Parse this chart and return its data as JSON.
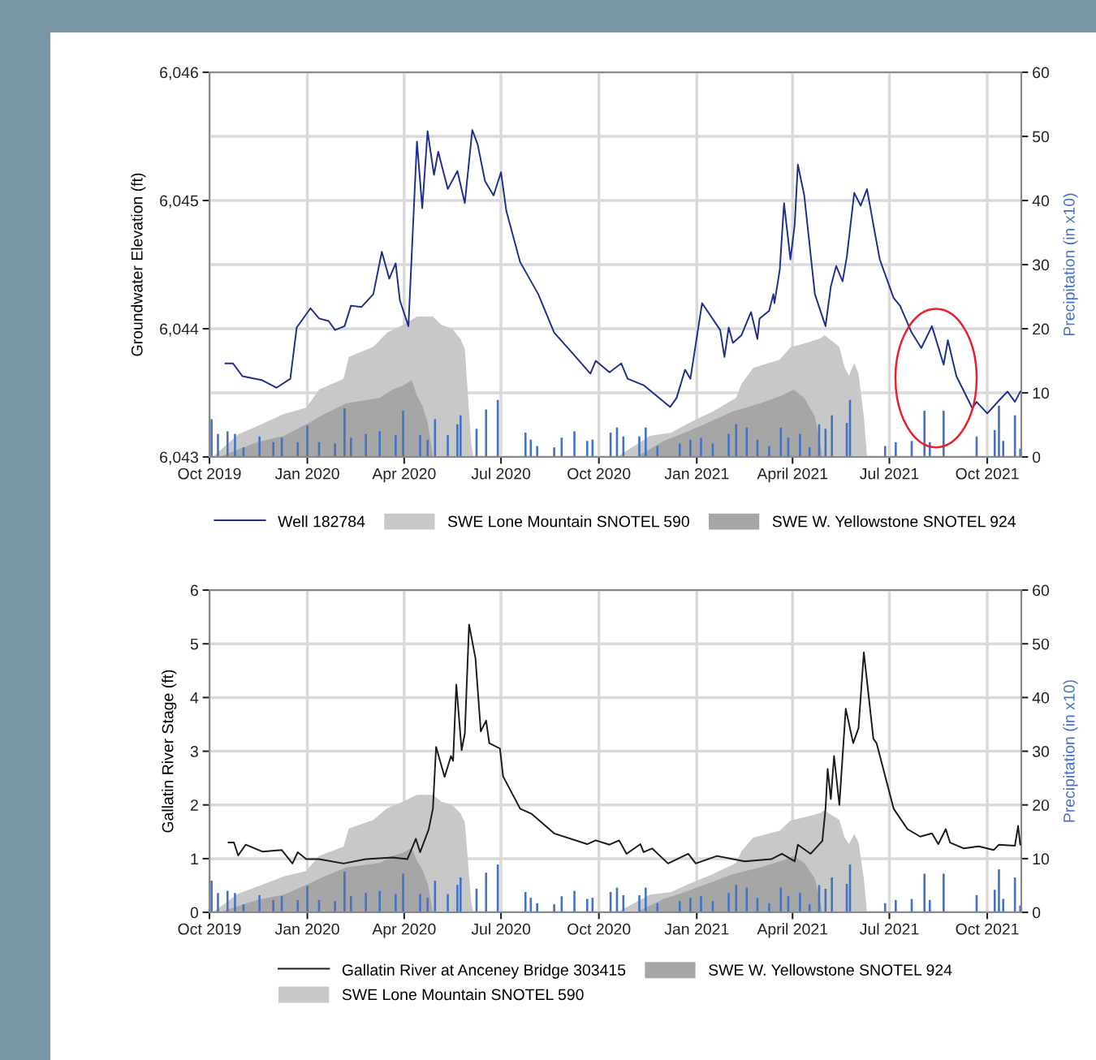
{
  "chart_data": [
    {
      "type": "line",
      "ylabel": "Groundwater Elevation (ft)",
      "y2label": "Precipitation (in x10)",
      "xlim": [
        "2019-10-01",
        "2021-11-02"
      ],
      "xticks": [
        {
          "value": "2019-10-01",
          "label": "Oct 2019"
        },
        {
          "value": "2020-01-01",
          "label": "Jan 2020"
        },
        {
          "value": "2020-04-01",
          "label": "Apr 2020"
        },
        {
          "value": "2020-07-01",
          "label": "Jul 2020"
        },
        {
          "value": "2020-10-01",
          "label": "Oct 2020"
        },
        {
          "value": "2021-01-01",
          "label": "Jan 2021"
        },
        {
          "value": "2021-04-01",
          "label": "April 2021"
        },
        {
          "value": "2021-07-01",
          "label": "Jul 2021"
        },
        {
          "value": "2021-10-01",
          "label": "Oct 2021"
        }
      ],
      "ylim": [
        6043,
        6046
      ],
      "yticks": [
        {
          "value": 6043,
          "label": "6,043"
        },
        {
          "value": 6044,
          "label": "6,044"
        },
        {
          "value": 6045,
          "label": "6,045"
        },
        {
          "value": 6046,
          "label": "6,046"
        }
      ],
      "y2lim": [
        0,
        60
      ],
      "y2ticks": [
        0,
        10,
        20,
        30,
        40,
        50,
        60
      ],
      "grid": true,
      "legend": "bottom",
      "series": [
        {
          "name": "SWE Lone Mountain SNOTEL 590",
          "type": "area",
          "axis": "y2",
          "color": "#c8c8c8",
          "x": [
            "2019-10-04",
            "2019-10-28",
            "2019-11-15",
            "2019-12-10",
            "2019-12-31",
            "2020-01-12",
            "2020-02-04",
            "2020-02-09",
            "2020-03-03",
            "2020-03-16",
            "2020-03-31",
            "2020-04-13",
            "2020-04-28",
            "2020-05-06",
            "2020-05-16",
            "2020-05-24",
            "2020-05-28",
            "2020-06-03",
            "2020-06-05",
            "2020-10-18",
            "2020-11-18",
            "2020-12-08",
            "2020-12-26",
            "2021-01-16",
            "2021-02-07",
            "2021-02-12",
            "2021-02-23",
            "2021-03-20",
            "2021-03-30",
            "2021-04-12",
            "2021-04-27",
            "2021-05-01",
            "2021-05-15",
            "2021-05-20",
            "2021-05-24",
            "2021-05-29",
            "2021-06-02",
            "2021-06-07",
            "2021-06-10"
          ],
          "values": [
            0,
            3.5,
            4.8,
            6.7,
            7.7,
            10.5,
            12.2,
            15.6,
            17.2,
            19.4,
            20.6,
            21.9,
            21.9,
            20.6,
            20.0,
            18.4,
            16.8,
            2.0,
            0,
            0,
            3.3,
            3.8,
            5.4,
            7.1,
            9.2,
            11.4,
            13.9,
            15.2,
            17.1,
            17.7,
            18.5,
            19.0,
            17.2,
            13.9,
            12.7,
            14.6,
            13.0,
            6.3,
            0
          ]
        },
        {
          "name": "SWE W. Yellowstone SNOTEL 924",
          "type": "area",
          "axis": "y2",
          "color": "#a6a6a6",
          "x": [
            "2019-10-10",
            "2019-11-15",
            "2019-12-10",
            "2019-12-31",
            "2020-01-17",
            "2020-02-07",
            "2020-03-09",
            "2020-03-21",
            "2020-03-31",
            "2020-04-08",
            "2020-04-13",
            "2020-04-18",
            "2020-04-23",
            "2020-04-28",
            "2020-11-05",
            "2020-12-01",
            "2020-12-21",
            "2021-01-08",
            "2021-02-04",
            "2021-03-02",
            "2021-03-22",
            "2021-04-02",
            "2021-04-12",
            "2021-04-22",
            "2021-04-27",
            "2021-04-29"
          ],
          "values": [
            0,
            2.3,
            3.3,
            5.1,
            6.7,
            8.4,
            9.2,
            10.5,
            11.1,
            12.0,
            9.6,
            8.0,
            5.4,
            0,
            0,
            2.5,
            3.8,
            5.1,
            7.1,
            8.4,
            9.6,
            10.5,
            9.2,
            6.3,
            2.0,
            0
          ]
        },
        {
          "type": "bar",
          "axis": "y2",
          "color": "#4472c4",
          "x": [
            "2019-10-03",
            "2019-10-09",
            "2019-10-18",
            "2019-10-25",
            "2019-11-02",
            "2019-11-17",
            "2019-11-30",
            "2019-12-08",
            "2019-12-23",
            "2020-01-01",
            "2020-01-12",
            "2020-01-27",
            "2020-02-05",
            "2020-02-11",
            "2020-02-25",
            "2020-03-09",
            "2020-03-24",
            "2020-03-31",
            "2020-04-16",
            "2020-04-23",
            "2020-04-30",
            "2020-05-12",
            "2020-05-21",
            "2020-05-24",
            "2020-06-08",
            "2020-06-17",
            "2020-06-28",
            "2020-07-24",
            "2020-07-29",
            "2020-08-04",
            "2020-08-20",
            "2020-08-27",
            "2020-09-08",
            "2020-09-20",
            "2020-09-25",
            "2020-10-12",
            "2020-10-18",
            "2020-10-24",
            "2020-11-08",
            "2020-11-14",
            "2020-11-25",
            "2020-12-16",
            "2020-12-26",
            "2021-01-05",
            "2021-01-16",
            "2021-01-31",
            "2021-02-07",
            "2021-02-17",
            "2021-02-27",
            "2021-03-10",
            "2021-03-21",
            "2021-03-28",
            "2021-04-08",
            "2021-04-17",
            "2021-04-26",
            "2021-05-02",
            "2021-05-08",
            "2021-05-22",
            "2021-05-25",
            "2021-06-27",
            "2021-07-07",
            "2021-07-22",
            "2021-08-03",
            "2021-08-08",
            "2021-08-21",
            "2021-09-21",
            "2021-10-08",
            "2021-10-12",
            "2021-10-16",
            "2021-10-27",
            "2021-11-01"
          ],
          "values": [
            5.9,
            3.6,
            4.0,
            3.6,
            1.5,
            3.2,
            2.3,
            3.0,
            2.3,
            4.9,
            2.3,
            2.1,
            7.6,
            3.0,
            3.6,
            4.0,
            3.4,
            7.2,
            3.4,
            2.7,
            5.9,
            3.4,
            5.1,
            6.5,
            4.4,
            7.4,
            8.9,
            3.8,
            2.7,
            1.7,
            1.5,
            3.0,
            4.0,
            2.5,
            2.7,
            3.8,
            4.6,
            3.2,
            3.2,
            4.6,
            1.7,
            2.1,
            2.7,
            3.0,
            2.1,
            3.6,
            5.1,
            4.6,
            2.7,
            1.7,
            4.6,
            3.0,
            3.6,
            1.5,
            5.1,
            4.4,
            6.5,
            5.3,
            8.9,
            1.7,
            2.3,
            2.5,
            7.2,
            2.3,
            7.2,
            3.2,
            4.2,
            8.0,
            2.5,
            6.5,
            1.3
          ]
        },
        {
          "name": "Well 182784",
          "color": "#1f2d8c",
          "x": [
            "2019-10-16",
            "2019-10-23",
            "2019-11-01",
            "2019-11-19",
            "2019-12-03",
            "2019-12-16",
            "2019-12-22",
            "2020-01-04",
            "2020-01-12",
            "2020-01-21",
            "2020-01-27",
            "2020-02-05",
            "2020-02-11",
            "2020-02-21",
            "2020-03-03",
            "2020-03-11",
            "2020-03-18",
            "2020-03-24",
            "2020-03-28",
            "2020-04-05",
            "2020-04-13",
            "2020-04-18",
            "2020-04-23",
            "2020-04-29",
            "2020-05-03",
            "2020-05-12",
            "2020-05-21",
            "2020-05-28",
            "2020-06-04",
            "2020-06-09",
            "2020-06-16",
            "2020-06-24",
            "2020-07-01",
            "2020-07-06",
            "2020-07-19",
            "2020-08-05",
            "2020-08-20",
            "2020-09-05",
            "2020-09-23",
            "2020-09-28",
            "2020-10-11",
            "2020-10-22",
            "2020-10-28",
            "2020-11-12",
            "2020-12-07",
            "2020-12-13",
            "2020-12-21",
            "2020-12-26",
            "2021-01-06",
            "2021-01-23",
            "2021-01-27",
            "2021-01-31",
            "2021-02-04",
            "2021-02-12",
            "2021-02-21",
            "2021-02-27",
            "2021-03-01",
            "2021-03-10",
            "2021-03-14",
            "2021-03-15",
            "2021-03-20",
            "2021-03-24",
            "2021-03-30",
            "2021-04-03",
            "2021-04-06",
            "2021-04-12",
            "2021-04-22",
            "2021-05-02",
            "2021-05-07",
            "2021-05-12",
            "2021-05-18",
            "2021-05-22",
            "2021-05-29",
            "2021-06-04",
            "2021-06-10",
            "2021-06-16",
            "2021-06-22",
            "2021-07-05",
            "2021-07-11",
            "2021-07-22",
            "2021-07-31",
            "2021-08-10",
            "2021-08-21",
            "2021-08-25",
            "2021-09-02",
            "2021-09-17",
            "2021-09-21",
            "2021-10-01",
            "2021-10-12",
            "2021-10-20",
            "2021-10-27",
            "2021-11-01"
          ],
          "values": [
            6043.73,
            6043.73,
            6043.63,
            6043.6,
            6043.54,
            6043.61,
            6044.01,
            6044.16,
            6044.08,
            6044.06,
            6043.99,
            6044.02,
            6044.18,
            6044.17,
            6044.27,
            6044.6,
            6044.39,
            6044.51,
            6044.22,
            6044.02,
            6045.46,
            6044.94,
            6045.54,
            6045.2,
            6045.38,
            6045.09,
            6045.23,
            6044.98,
            6045.55,
            6045.44,
            6045.15,
            6045.04,
            6045.22,
            6044.92,
            6044.52,
            6044.27,
            6043.97,
            6043.82,
            6043.65,
            6043.75,
            6043.66,
            6043.73,
            6043.61,
            6043.56,
            6043.39,
            6043.46,
            6043.68,
            6043.61,
            6044.2,
            6043.99,
            6043.78,
            6044.01,
            6043.89,
            6043.95,
            6044.13,
            6043.92,
            6044.08,
            6044.14,
            6044.27,
            6044.2,
            6044.46,
            6044.98,
            6044.54,
            6044.81,
            6045.28,
            6045.04,
            6044.27,
            6044.02,
            6044.33,
            6044.49,
            6044.37,
            6044.56,
            6045.06,
            6044.96,
            6045.09,
            6044.81,
            6044.54,
            6044.24,
            6044.18,
            6043.97,
            6043.85,
            6044.02,
            6043.72,
            6043.91,
            6043.63,
            6043.38,
            6043.43,
            6043.34,
            6043.44,
            6043.51,
            6043.43,
            6043.51
          ]
        }
      ]
    },
    {
      "type": "line",
      "ylabel": "Gallatin River Stage (ft)",
      "y2label": "Precipitation (in x10)",
      "xlim": [
        "2019-10-01",
        "2021-11-02"
      ],
      "xticks": [
        {
          "value": "2019-10-01",
          "label": "Oct 2019"
        },
        {
          "value": "2020-01-01",
          "label": "Jan 2020"
        },
        {
          "value": "2020-04-01",
          "label": "Apr 2020"
        },
        {
          "value": "2020-07-01",
          "label": "Jul 2020"
        },
        {
          "value": "2020-10-01",
          "label": "Oct 2020"
        },
        {
          "value": "2021-01-01",
          "label": "Jan 2021"
        },
        {
          "value": "2021-04-01",
          "label": "April 2021"
        },
        {
          "value": "2021-07-01",
          "label": "Jul 2021"
        },
        {
          "value": "2021-10-01",
          "label": "Oct 2021"
        }
      ],
      "ylim": [
        0,
        6
      ],
      "yticks": [
        0,
        1,
        2,
        3,
        4,
        5,
        6
      ],
      "y2lim": [
        0,
        60
      ],
      "y2ticks": [
        0,
        10,
        20,
        30,
        40,
        50,
        60
      ],
      "grid": true,
      "legend": "bottom",
      "series": [
        {
          "name": "SWE Lone Mountain SNOTEL 590",
          "type": "area",
          "axis": "y2",
          "color": "#c8c8c8",
          "x": [
            "2019-10-04",
            "2019-10-28",
            "2019-11-15",
            "2019-12-10",
            "2019-12-31",
            "2020-01-12",
            "2020-02-04",
            "2020-02-09",
            "2020-03-03",
            "2020-03-16",
            "2020-03-31",
            "2020-04-13",
            "2020-04-28",
            "2020-05-06",
            "2020-05-16",
            "2020-05-24",
            "2020-05-28",
            "2020-06-03",
            "2020-06-05",
            "2020-10-18",
            "2020-11-18",
            "2020-12-08",
            "2020-12-26",
            "2021-01-16",
            "2021-02-07",
            "2021-02-12",
            "2021-02-23",
            "2021-03-20",
            "2021-03-30",
            "2021-04-12",
            "2021-04-27",
            "2021-05-01",
            "2021-05-15",
            "2021-05-20",
            "2021-05-24",
            "2021-05-29",
            "2021-06-02",
            "2021-06-07",
            "2021-06-10"
          ],
          "values": [
            0,
            3.5,
            4.8,
            6.7,
            7.7,
            10.5,
            12.2,
            15.6,
            17.2,
            19.4,
            20.6,
            21.9,
            21.9,
            20.6,
            20.0,
            18.4,
            16.8,
            2.0,
            0,
            0,
            3.3,
            3.8,
            5.4,
            7.1,
            9.2,
            11.4,
            13.9,
            15.2,
            17.1,
            17.7,
            18.5,
            19.0,
            17.2,
            13.9,
            12.7,
            14.6,
            13.0,
            6.3,
            0
          ]
        },
        {
          "name": "SWE W. Yellowstone SNOTEL 924",
          "type": "area",
          "axis": "y2",
          "color": "#a6a6a6",
          "x": [
            "2019-10-10",
            "2019-11-15",
            "2019-12-10",
            "2019-12-31",
            "2020-01-17",
            "2020-02-07",
            "2020-03-09",
            "2020-03-21",
            "2020-03-31",
            "2020-04-08",
            "2020-04-13",
            "2020-04-18",
            "2020-04-23",
            "2020-04-28",
            "2020-11-05",
            "2020-12-01",
            "2020-12-21",
            "2021-01-08",
            "2021-02-04",
            "2021-03-02",
            "2021-03-22",
            "2021-04-02",
            "2021-04-12",
            "2021-04-22",
            "2021-04-27",
            "2021-04-29"
          ],
          "values": [
            0,
            2.3,
            3.3,
            5.1,
            6.7,
            8.4,
            9.2,
            10.5,
            11.1,
            12.0,
            9.6,
            8.0,
            5.4,
            0,
            0,
            2.5,
            3.8,
            5.1,
            7.1,
            8.4,
            9.6,
            10.5,
            9.2,
            6.3,
            2.0,
            0
          ]
        },
        {
          "type": "bar",
          "axis": "y2",
          "color": "#4472c4",
          "x": [
            "2019-10-03",
            "2019-10-09",
            "2019-10-18",
            "2019-10-25",
            "2019-11-02",
            "2019-11-17",
            "2019-11-30",
            "2019-12-08",
            "2019-12-23",
            "2020-01-01",
            "2020-01-12",
            "2020-01-27",
            "2020-02-05",
            "2020-02-11",
            "2020-02-25",
            "2020-03-09",
            "2020-03-24",
            "2020-03-31",
            "2020-04-16",
            "2020-04-23",
            "2020-04-30",
            "2020-05-12",
            "2020-05-21",
            "2020-05-24",
            "2020-06-08",
            "2020-06-17",
            "2020-06-28",
            "2020-07-24",
            "2020-07-29",
            "2020-08-04",
            "2020-08-20",
            "2020-08-27",
            "2020-09-08",
            "2020-09-20",
            "2020-09-25",
            "2020-10-12",
            "2020-10-18",
            "2020-10-24",
            "2020-11-08",
            "2020-11-14",
            "2020-11-25",
            "2020-12-16",
            "2020-12-26",
            "2021-01-05",
            "2021-01-16",
            "2021-01-31",
            "2021-02-07",
            "2021-02-17",
            "2021-02-27",
            "2021-03-10",
            "2021-03-21",
            "2021-03-28",
            "2021-04-08",
            "2021-04-17",
            "2021-04-26",
            "2021-05-02",
            "2021-05-08",
            "2021-05-22",
            "2021-05-25",
            "2021-06-27",
            "2021-07-07",
            "2021-07-22",
            "2021-08-03",
            "2021-08-08",
            "2021-08-21",
            "2021-09-21",
            "2021-10-08",
            "2021-10-12",
            "2021-10-16",
            "2021-10-27",
            "2021-11-01"
          ],
          "values": [
            5.9,
            3.6,
            4.0,
            3.6,
            1.5,
            3.2,
            2.3,
            3.0,
            2.3,
            4.9,
            2.3,
            2.1,
            7.6,
            3.0,
            3.6,
            4.0,
            3.4,
            7.2,
            3.4,
            2.7,
            5.9,
            3.4,
            5.1,
            6.5,
            4.4,
            7.4,
            8.9,
            3.8,
            2.7,
            1.7,
            1.5,
            3.0,
            4.0,
            2.5,
            2.7,
            3.8,
            4.6,
            3.2,
            3.2,
            4.6,
            1.7,
            2.1,
            2.7,
            3.0,
            2.1,
            3.6,
            5.1,
            4.6,
            2.7,
            1.7,
            4.6,
            3.0,
            3.6,
            1.5,
            5.1,
            4.4,
            6.5,
            5.3,
            8.9,
            1.7,
            2.3,
            2.5,
            7.2,
            2.3,
            7.2,
            3.2,
            4.2,
            8.0,
            2.5,
            6.5,
            1.3
          ]
        },
        {
          "name": "Gallatin River at Anceney Bridge 303415",
          "color": "#1a1a1a",
          "x": [
            "2019-10-19",
            "2019-10-24",
            "2019-10-28",
            "2019-11-04",
            "2019-11-20",
            "2019-12-08",
            "2019-12-18",
            "2019-12-23",
            "2019-12-31",
            "2020-01-12",
            "2020-02-04",
            "2020-02-25",
            "2020-03-21",
            "2020-04-04",
            "2020-04-12",
            "2020-04-16",
            "2020-04-24",
            "2020-04-28",
            "2020-05-01",
            "2020-05-09",
            "2020-05-15",
            "2020-05-17",
            "2020-05-20",
            "2020-05-25",
            "2020-05-28",
            "2020-06-01",
            "2020-06-07",
            "2020-06-12",
            "2020-06-17",
            "2020-06-20",
            "2020-06-30",
            "2020-07-03",
            "2020-07-19",
            "2020-07-30",
            "2020-08-20",
            "2020-09-20",
            "2020-09-28",
            "2020-10-11",
            "2020-10-20",
            "2020-10-27",
            "2020-11-09",
            "2020-11-12",
            "2020-11-20",
            "2020-12-05",
            "2020-12-24",
            "2020-12-31",
            "2021-01-20",
            "2021-02-15",
            "2021-03-12",
            "2021-03-22",
            "2021-04-03",
            "2021-04-06",
            "2021-04-18",
            "2021-04-29",
            "2021-05-02",
            "2021-05-04",
            "2021-05-07",
            "2021-05-10",
            "2021-05-15",
            "2021-05-21",
            "2021-05-28",
            "2021-06-02",
            "2021-06-07",
            "2021-06-16",
            "2021-06-19",
            "2021-07-05",
            "2021-07-18",
            "2021-07-30",
            "2021-08-10",
            "2021-08-16",
            "2021-08-23",
            "2021-08-27",
            "2021-09-09",
            "2021-09-23",
            "2021-10-07",
            "2021-10-12",
            "2021-10-27",
            "2021-10-30",
            "2021-11-01"
          ],
          "values": [
            1.3,
            1.3,
            1.06,
            1.26,
            1.13,
            1.16,
            0.91,
            1.12,
            0.99,
            0.99,
            0.91,
            0.99,
            1.02,
            0.99,
            1.37,
            1.12,
            1.54,
            1.93,
            3.08,
            2.52,
            2.91,
            2.82,
            4.24,
            3.02,
            3.33,
            5.36,
            4.73,
            3.37,
            3.57,
            3.15,
            3.05,
            2.53,
            1.93,
            1.83,
            1.47,
            1.27,
            1.34,
            1.26,
            1.34,
            1.09,
            1.27,
            1.12,
            1.19,
            0.91,
            1.09,
            0.91,
            1.05,
            0.95,
            0.99,
            1.09,
            0.95,
            1.26,
            1.09,
            1.33,
            1.93,
            2.67,
            2.11,
            2.91,
            2.0,
            3.79,
            3.15,
            3.43,
            4.84,
            3.23,
            3.15,
            1.93,
            1.55,
            1.41,
            1.47,
            1.27,
            1.55,
            1.3,
            1.19,
            1.23,
            1.16,
            1.26,
            1.24,
            1.61,
            1.26
          ]
        }
      ]
    }
  ]
}
